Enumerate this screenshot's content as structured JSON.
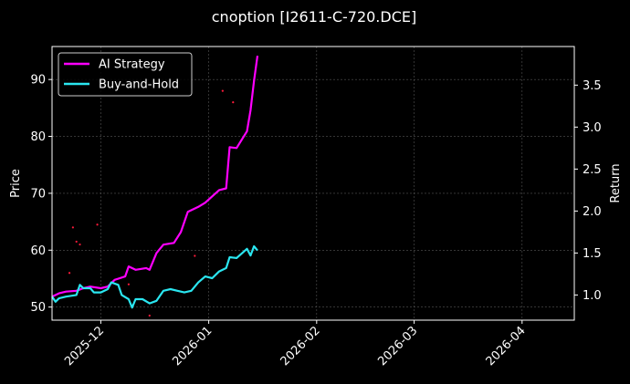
{
  "chart_data": {
    "type": "line",
    "title": "cnoption [I2611-C-720.DCE]",
    "ylabel_left": "Price",
    "ylabel_right": "Return",
    "ylim_left": [
      47.7,
      95.8
    ],
    "ylim_right": [
      0.7,
      3.96
    ],
    "xlim": [
      "2025-11-17",
      "2026-04-16"
    ],
    "x_ticks": [
      "2025-12",
      "2026-01",
      "2026-02",
      "2026-03",
      "2026-04"
    ],
    "x_tick_dates": [
      "2025-12-01",
      "2026-01-01",
      "2026-02-01",
      "2026-03-01",
      "2026-04-01"
    ],
    "y_ticks_left": [
      50,
      60,
      70,
      80,
      90
    ],
    "y_ticks_right": [
      1.0,
      1.5,
      2.0,
      2.5,
      3.0,
      3.5
    ],
    "grid": true,
    "legend_position": "top-left",
    "colors": {
      "background": "#000000",
      "ai_strategy": "#ff00ff",
      "buy_and_hold": "#2ae6f0",
      "scatter_points": "#ff1a3a",
      "grid": "#555555",
      "text": "#ffffff"
    },
    "series": [
      {
        "name": "AI Strategy",
        "axis": "right",
        "points": [
          [
            "2025-11-17",
            0.98
          ],
          [
            "2025-11-19",
            1.02
          ],
          [
            "2025-11-21",
            1.04
          ],
          [
            "2025-11-24",
            1.05
          ],
          [
            "2025-11-26",
            1.08
          ],
          [
            "2025-11-28",
            1.1
          ],
          [
            "2025-12-01",
            1.08
          ],
          [
            "2025-12-03",
            1.1
          ],
          [
            "2025-12-05",
            1.18
          ],
          [
            "2025-12-08",
            1.22
          ],
          [
            "2025-12-09",
            1.34
          ],
          [
            "2025-12-11",
            1.3
          ],
          [
            "2025-12-14",
            1.32
          ],
          [
            "2025-12-15",
            1.3
          ],
          [
            "2025-12-17",
            1.5
          ],
          [
            "2025-12-19",
            1.6
          ],
          [
            "2025-12-22",
            1.62
          ],
          [
            "2025-12-24",
            1.75
          ],
          [
            "2025-12-26",
            1.99
          ],
          [
            "2025-12-29",
            2.05
          ],
          [
            "2025-12-31",
            2.1
          ],
          [
            "2026-01-04",
            2.25
          ],
          [
            "2026-01-06",
            2.27
          ],
          [
            "2026-01-07",
            2.76
          ],
          [
            "2026-01-09",
            2.75
          ],
          [
            "2026-01-12",
            2.95
          ],
          [
            "2026-01-13",
            3.2
          ],
          [
            "2026-01-14",
            3.55
          ],
          [
            "2026-01-15",
            3.85
          ]
        ]
      },
      {
        "name": "Buy-and-Hold",
        "axis": "right",
        "points": [
          [
            "2025-11-17",
            0.98
          ],
          [
            "2025-11-18",
            0.92
          ],
          [
            "2025-11-19",
            0.96
          ],
          [
            "2025-11-21",
            0.98
          ],
          [
            "2025-11-24",
            1.0
          ],
          [
            "2025-11-25",
            1.12
          ],
          [
            "2025-11-26",
            1.08
          ],
          [
            "2025-11-28",
            1.08
          ],
          [
            "2025-11-29",
            1.03
          ],
          [
            "2025-12-01",
            1.03
          ],
          [
            "2025-12-03",
            1.07
          ],
          [
            "2025-12-04",
            1.15
          ],
          [
            "2025-12-06",
            1.12
          ],
          [
            "2025-12-07",
            1.0
          ],
          [
            "2025-12-09",
            0.95
          ],
          [
            "2025-12-10",
            0.85
          ],
          [
            "2025-12-11",
            0.95
          ],
          [
            "2025-12-13",
            0.95
          ],
          [
            "2025-12-15",
            0.9
          ],
          [
            "2025-12-17",
            0.93
          ],
          [
            "2025-12-19",
            1.05
          ],
          [
            "2025-12-21",
            1.07
          ],
          [
            "2025-12-23",
            1.05
          ],
          [
            "2025-12-25",
            1.03
          ],
          [
            "2025-12-27",
            1.05
          ],
          [
            "2025-12-29",
            1.15
          ],
          [
            "2025-12-31",
            1.22
          ],
          [
            "2026-01-02",
            1.2
          ],
          [
            "2026-01-04",
            1.28
          ],
          [
            "2026-01-06",
            1.32
          ],
          [
            "2026-01-07",
            1.45
          ],
          [
            "2026-01-09",
            1.44
          ],
          [
            "2026-01-12",
            1.55
          ],
          [
            "2026-01-13",
            1.47
          ],
          [
            "2026-01-14",
            1.58
          ],
          [
            "2026-01-15",
            1.53
          ]
        ]
      },
      {
        "name": "",
        "axis": "left",
        "style": "scatter",
        "points": [
          [
            "2025-11-23",
            64.0
          ],
          [
            "2025-11-24",
            61.5
          ],
          [
            "2025-11-25",
            61.0
          ],
          [
            "2025-11-22",
            56.0
          ],
          [
            "2025-11-30",
            64.5
          ],
          [
            "2025-12-09",
            54.0
          ],
          [
            "2025-12-15",
            48.5
          ],
          [
            "2025-12-28",
            59.0
          ],
          [
            "2026-01-05",
            88.0
          ],
          [
            "2026-01-08",
            86.0
          ]
        ]
      }
    ]
  }
}
